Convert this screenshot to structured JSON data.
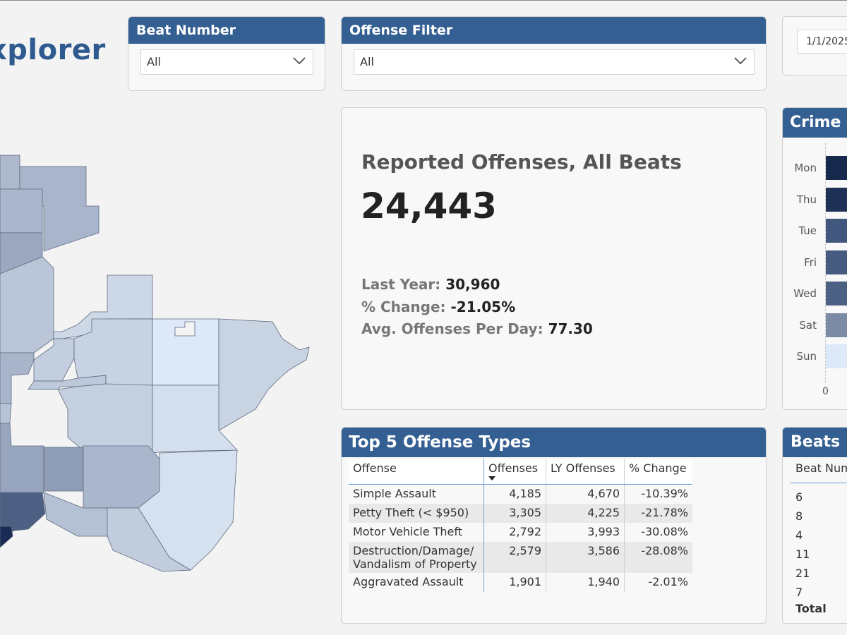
{
  "page_title": "xplorer",
  "slicers": {
    "beat": {
      "title": "Beat Number",
      "value": "All"
    },
    "offense": {
      "title": "Offense Filter",
      "value": "All"
    },
    "date": {
      "value": "1/1/2025"
    }
  },
  "kpi": {
    "title": "Reported Offenses, All Beats",
    "value": "24,443",
    "last_year_label": "Last Year:",
    "last_year_value": "30,960",
    "change_label": "% Change:",
    "change_value": "-21.05%",
    "avg_label": "Avg. Offenses Per Day:",
    "avg_value": "77.30"
  },
  "day_chart": {
    "title": "Crime b",
    "axis_zero": "0",
    "days": [
      {
        "label": "Mon",
        "color": "#17284d"
      },
      {
        "label": "Thu",
        "color": "#1f3157"
      },
      {
        "label": "Tue",
        "color": "#42577d"
      },
      {
        "label": "Fri",
        "color": "#475b80"
      },
      {
        "label": "Wed",
        "color": "#4c6084"
      },
      {
        "label": "Sat",
        "color": "#7b8aa5"
      },
      {
        "label": "Sun",
        "color": "#dde9f8"
      }
    ]
  },
  "offense_table": {
    "title": "Top 5 Offense Types",
    "headers": [
      "Offense",
      "Offenses",
      "LY Offenses",
      "% Change"
    ],
    "rows": [
      {
        "offense": "Simple Assault",
        "offense2": "",
        "count": "4,185",
        "ly": "4,670",
        "change": "-10.39%"
      },
      {
        "offense": "Petty Theft (< $950)",
        "offense2": "",
        "count": "3,305",
        "ly": "4,225",
        "change": "-21.78%"
      },
      {
        "offense": "Motor Vehicle Theft",
        "offense2": "",
        "count": "2,792",
        "ly": "3,993",
        "change": "-30.08%"
      },
      {
        "offense": "Destruction/Damage/",
        "offense2": "Vandalism of Property",
        "count": "2,579",
        "ly": "3,586",
        "change": "-28.08%"
      },
      {
        "offense": "Aggravated Assault",
        "offense2": "",
        "count": "1,901",
        "ly": "1,940",
        "change": "-2.01%"
      }
    ]
  },
  "beats": {
    "title": "Beats",
    "column": "Beat Num",
    "items": [
      "6",
      "8",
      "4",
      "11",
      "21",
      "7"
    ],
    "total_label": "Total"
  },
  "colors": {
    "header": "#345f92",
    "title": "#2e5a8f",
    "map_dark": "#1a2c55",
    "map_light": "#dde9f8"
  }
}
